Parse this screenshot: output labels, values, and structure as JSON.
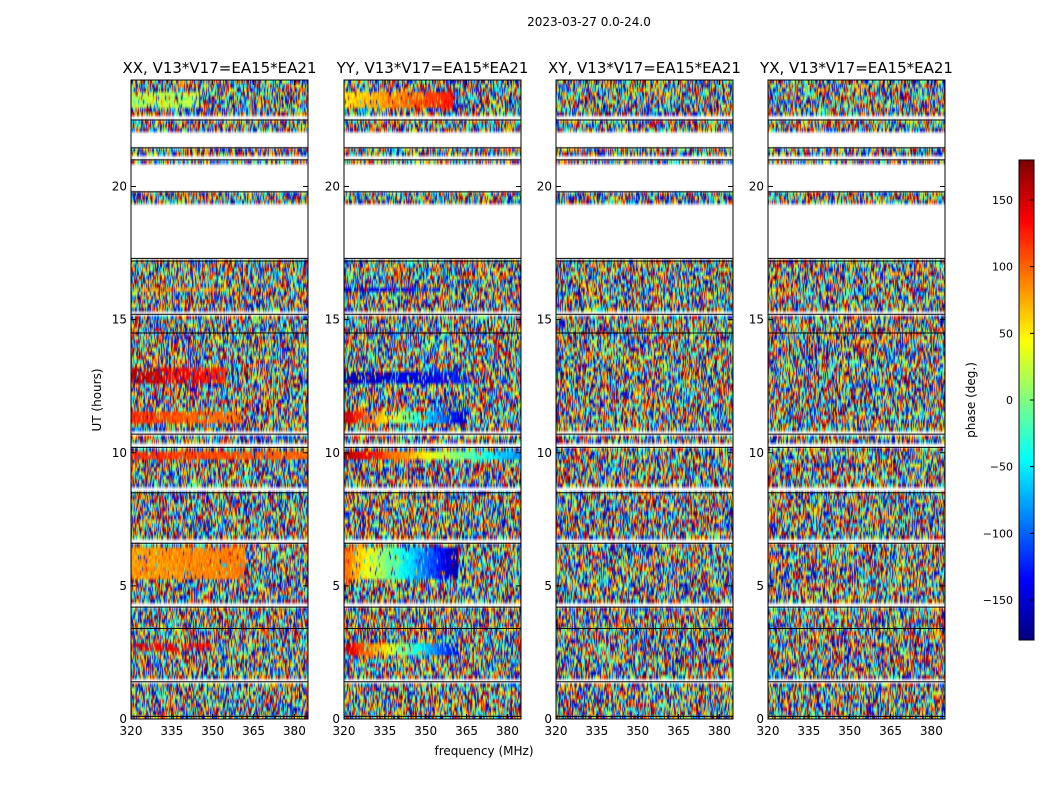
{
  "chart_data": {
    "type": "heatmap",
    "suptitle": "2023-03-27 0.0-24.0",
    "xlabel": "frequency (MHz)",
    "ylabel": "UT (hours)",
    "xlim": [
      320,
      385
    ],
    "ylim": [
      0,
      24
    ],
    "xticks": [
      320,
      335,
      350,
      365,
      380
    ],
    "yticks": [
      0,
      5,
      10,
      15,
      20
    ],
    "panels": [
      {
        "title": "XX, V13*V17=EA15*EA21",
        "coherent_bands": [
          {
            "t0": 23.0,
            "t1": 23.6,
            "f0": 320,
            "f1": 345,
            "phase_start": 20,
            "phase_end": 20,
            "strength": 0.7
          },
          {
            "t0": 16.0,
            "t1": 16.2,
            "f0": 320,
            "f1": 355,
            "phase_start": 80,
            "phase_end": 80,
            "strength": 0.6
          },
          {
            "t0": 12.6,
            "t1": 13.2,
            "f0": 320,
            "f1": 355,
            "phase_start": 160,
            "phase_end": 120,
            "strength": 0.75
          },
          {
            "t0": 11.1,
            "t1": 11.6,
            "f0": 320,
            "f1": 360,
            "phase_start": 120,
            "phase_end": 90,
            "strength": 0.8
          },
          {
            "t0": 9.8,
            "t1": 10.0,
            "f0": 320,
            "f1": 385,
            "phase_start": 120,
            "phase_end": 100,
            "strength": 0.9
          },
          {
            "t0": 5.2,
            "t1": 6.4,
            "f0": 320,
            "f1": 362,
            "phase_start": 80,
            "phase_end": 90,
            "strength": 0.9
          },
          {
            "t0": 2.5,
            "t1": 2.8,
            "f0": 320,
            "f1": 350,
            "phase_start": 140,
            "phase_end": 130,
            "strength": 0.6
          }
        ]
      },
      {
        "title": "YY, V13*V17=EA15*EA21",
        "coherent_bands": [
          {
            "t0": 23.0,
            "t1": 23.6,
            "f0": 320,
            "f1": 360,
            "phase_start": 50,
            "phase_end": 130,
            "strength": 0.85
          },
          {
            "t0": 16.0,
            "t1": 16.2,
            "f0": 320,
            "f1": 355,
            "phase_start": -150,
            "phase_end": -120,
            "strength": 0.6
          },
          {
            "t0": 12.6,
            "t1": 13.0,
            "f0": 320,
            "f1": 365,
            "phase_start": -160,
            "phase_end": -130,
            "strength": 0.75
          },
          {
            "t0": 11.1,
            "t1": 11.5,
            "f0": 320,
            "f1": 365,
            "phase_start": 160,
            "phase_end": -160,
            "strength": 0.8
          },
          {
            "t0": 9.8,
            "t1": 10.1,
            "f0": 320,
            "f1": 385,
            "phase_start": 170,
            "phase_end": -90,
            "strength": 0.95
          },
          {
            "t0": 5.2,
            "t1": 6.4,
            "f0": 320,
            "f1": 362,
            "phase_start": 100,
            "phase_end": -170,
            "strength": 0.9
          },
          {
            "t0": 2.4,
            "t1": 2.9,
            "f0": 320,
            "f1": 362,
            "phase_start": 160,
            "phase_end": -150,
            "strength": 0.8
          }
        ]
      },
      {
        "title": "XY, V13*V17=EA15*EA21",
        "coherent_bands": []
      },
      {
        "title": "YX, V13*V17=EA15*EA21",
        "coherent_bands": []
      }
    ],
    "flagged_gaps_hours": [
      [
        0.1,
        0.2
      ],
      [
        1.4,
        1.55
      ],
      [
        3.4,
        3.5
      ],
      [
        4.2,
        4.3
      ],
      [
        6.6,
        6.8
      ],
      [
        8.5,
        8.7
      ],
      [
        10.2,
        10.4
      ],
      [
        10.7,
        10.8
      ],
      [
        14.5,
        14.6
      ],
      [
        15.2,
        15.3
      ],
      [
        17.2,
        17.3
      ],
      [
        17.3,
        19.35
      ],
      [
        19.8,
        20.85
      ],
      [
        21.0,
        21.15
      ],
      [
        21.45,
        22.1
      ],
      [
        22.5,
        22.6
      ]
    ],
    "colorbar": {
      "label": "phase (deg.)",
      "colormap": "jet",
      "range": [
        -180,
        180
      ],
      "ticks": [
        150,
        100,
        50,
        0,
        -50,
        -100,
        -150
      ],
      "tick_labels": [
        "150",
        "100",
        "50",
        "0",
        "−50",
        "−100",
        "−150"
      ]
    }
  }
}
